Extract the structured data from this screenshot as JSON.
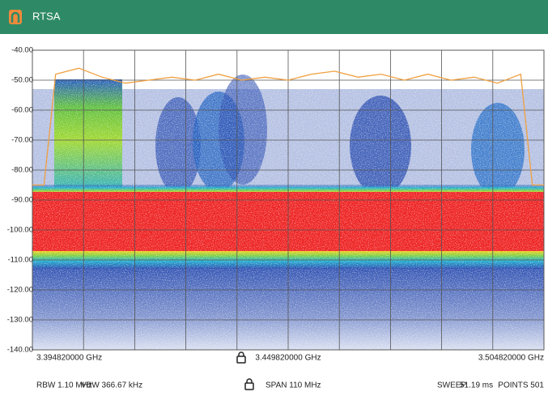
{
  "app_bar": {
    "title": "RTSA"
  },
  "chart_data": {
    "type": "line",
    "xlim": [
      3.39482,
      3.50482
    ],
    "xticks": [
      {
        "value": 3.39482,
        "label": "3.394820000 GHz"
      },
      {
        "value": 3.44982,
        "label": "3.449820000 GHz"
      },
      {
        "value": 3.50482,
        "label": "3.504820000 GHz"
      }
    ],
    "ylim": [
      -140,
      -40
    ],
    "yticks": [
      {
        "value": -40,
        "label": "-40.00"
      },
      {
        "value": -50,
        "label": "-50.00"
      },
      {
        "value": -60,
        "label": "-60.00"
      },
      {
        "value": -70,
        "label": "-70.00"
      },
      {
        "value": -80,
        "label": "-80.00"
      },
      {
        "value": -90,
        "label": "-90.00"
      },
      {
        "value": -100,
        "label": "-100.00"
      },
      {
        "value": -110,
        "label": "-110.00"
      },
      {
        "value": -120,
        "label": "-120.00"
      },
      {
        "value": -130,
        "label": "-130.00"
      },
      {
        "value": -140,
        "label": "-140.00"
      }
    ],
    "grid": true,
    "series": [
      {
        "color": "#f0a040",
        "x": [
          3.39482,
          3.39732,
          3.39982,
          3.40482,
          3.40982,
          3.41482,
          3.41982,
          3.42482,
          3.42982,
          3.43482,
          3.43982,
          3.44482,
          3.44982,
          3.45482,
          3.45982,
          3.46482,
          3.46982,
          3.47482,
          3.47982,
          3.48482,
          3.48982,
          3.49482,
          3.49982,
          3.50232,
          3.50482
        ],
        "values": [
          -85,
          -85,
          -48,
          -46,
          -49,
          -51,
          -50,
          -49,
          -50,
          -48,
          -50,
          -49,
          -50,
          -48,
          -47,
          -49,
          -48,
          -50,
          -48,
          -50,
          -49,
          -51,
          -48,
          -85,
          -85
        ]
      }
    ]
  },
  "status_bar": {
    "rbw": "RBW 1.10 MHz",
    "vbw": "VBW 366.67 kHz",
    "span": "SPAN 110 MHz",
    "sweep_label": "SWEEP",
    "sweep": "51.19 ms",
    "points": "POINTS 501"
  }
}
